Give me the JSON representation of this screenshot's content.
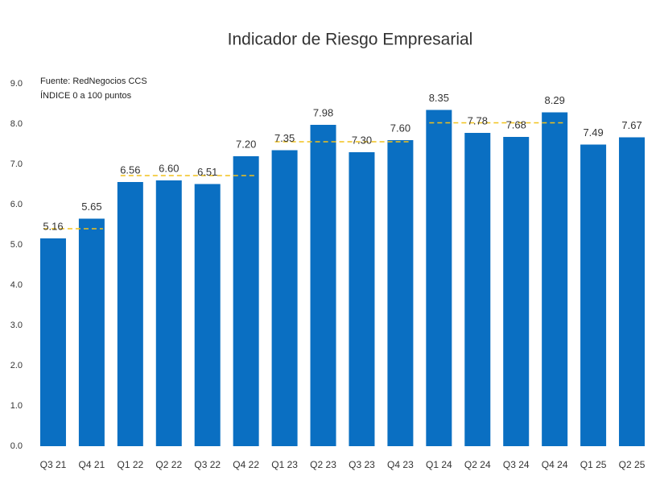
{
  "chart_data": {
    "type": "bar",
    "title": "Indicador de Riesgo Empresarial",
    "notes": [
      "Fuente: RedNegocios CCS",
      "ÍNDICE 0 a 100  puntos"
    ],
    "categories": [
      "Q3 21",
      "Q4 21",
      "Q1 22",
      "Q2 22",
      "Q3 22",
      "Q4 22",
      "Q1 23",
      "Q2 23",
      "Q3 23",
      "Q4 23",
      "Q1 24",
      "Q2 24",
      "Q3 24",
      "Q4 24",
      "Q1 25",
      "Q2 25"
    ],
    "values": [
      5.16,
      5.65,
      6.56,
      6.6,
      6.51,
      7.2,
      7.35,
      7.98,
      7.3,
      7.6,
      8.35,
      7.78,
      7.68,
      8.29,
      7.49,
      7.67
    ],
    "value_labels": [
      "5.16",
      "5.65",
      "6.56",
      "6.60",
      "6.51",
      "7.20",
      "7.35",
      "7.98",
      "7.30",
      "7.60",
      "8.35",
      "7.78",
      "7.68",
      "8.29",
      "7.49",
      "7.67"
    ],
    "color": "#0a6fc2",
    "averages": {
      "color": "#f2c21b",
      "values": [
        5.4,
        5.4,
        6.72,
        6.72,
        6.72,
        6.72,
        7.56,
        7.56,
        7.56,
        7.56,
        8.03,
        8.03,
        8.03,
        8.03,
        null,
        null
      ]
    },
    "ylim": [
      0,
      9
    ],
    "yticks": [
      {
        "value": 0,
        "label": "0.0"
      },
      {
        "value": 1,
        "label": "1.0"
      },
      {
        "value": 2,
        "label": "2.0"
      },
      {
        "value": 3,
        "label": "3.0"
      },
      {
        "value": 4,
        "label": "4.0"
      },
      {
        "value": 5,
        "label": "5.0"
      },
      {
        "value": 6,
        "label": "6.0"
      },
      {
        "value": 7,
        "label": "7.0"
      },
      {
        "value": 8,
        "label": "8.0"
      },
      {
        "value": 9,
        "label": "9.0"
      }
    ],
    "grid": false
  }
}
